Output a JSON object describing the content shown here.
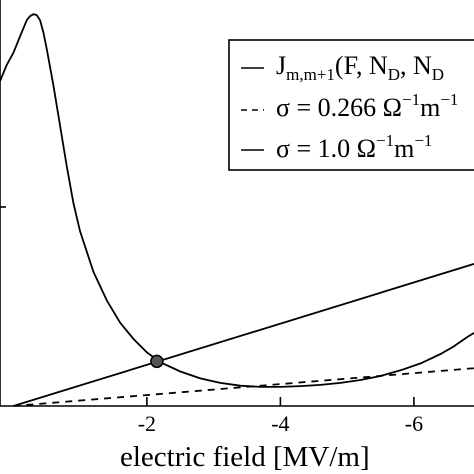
{
  "chart_data": {
    "type": "line",
    "xlabel": "electric field [MV/m]",
    "ylabel": "",
    "xlim": [
      0.2,
      -6.9
    ],
    "ylim": [
      0,
      1.0
    ],
    "x_axis_reversed": true,
    "grid": false,
    "legend_placement": "top-right",
    "x_ticks": [
      {
        "value": -2,
        "label": "-2"
      },
      {
        "value": -4,
        "label": "-4"
      },
      {
        "value": -6,
        "label": "-6"
      }
    ],
    "legend": [
      {
        "style": "solid",
        "text": "J",
        "sub": "m,m+1",
        "tail": "(F, N",
        "sub2": "D",
        "tail2": ", N",
        "sub3": "D"
      },
      {
        "style": "dashed",
        "text": "σ = 0.266 Ω",
        "sup": "−1",
        "tail": "m",
        "sup2": "−1"
      },
      {
        "style": "solid",
        "text": "σ = 1.0 Ω",
        "sup": "−1",
        "tail": "m",
        "sup2": "−1"
      }
    ],
    "series": [
      {
        "name": "J_m,m+1(F, N_D, N_D)",
        "style": "solid",
        "x": [
          0.2,
          0.1,
          0.0,
          -0.1,
          -0.2,
          -0.25,
          -0.3,
          -0.35,
          -0.4,
          -0.45,
          -0.5,
          -0.6,
          -0.7,
          -0.8,
          -0.9,
          -1.0,
          -1.2,
          -1.4,
          -1.6,
          -1.8,
          -2.0,
          -2.2,
          -2.5,
          -2.8,
          -3.1,
          -3.4,
          -3.7,
          -4.0,
          -4.3,
          -4.6,
          -4.9,
          -5.2,
          -5.5,
          -5.8,
          -6.1,
          -6.4,
          -6.6,
          -6.8,
          -6.9
        ],
        "y": [
          0.8,
          0.84,
          0.87,
          0.91,
          0.95,
          0.96,
          0.965,
          0.963,
          0.95,
          0.92,
          0.88,
          0.79,
          0.69,
          0.59,
          0.5,
          0.43,
          0.33,
          0.26,
          0.205,
          0.165,
          0.132,
          0.108,
          0.085,
          0.068,
          0.057,
          0.05,
          0.047,
          0.047,
          0.049,
          0.052,
          0.057,
          0.064,
          0.074,
          0.088,
          0.105,
          0.128,
          0.147,
          0.17,
          0.18
        ]
      },
      {
        "name": "σ = 0.266 Ω⁻¹m⁻¹",
        "style": "dashed",
        "x": [
          0.0,
          -6.9
        ],
        "y": [
          0.0,
          0.093
        ]
      },
      {
        "name": "σ = 1.0 Ω⁻¹m⁻¹",
        "style": "solid",
        "x": [
          0.0,
          -6.9
        ],
        "y": [
          0.0,
          0.35
        ]
      }
    ],
    "markers": [
      {
        "x": -2.15,
        "y": 0.11,
        "style": "filled-circle",
        "color": "#555555"
      }
    ]
  }
}
